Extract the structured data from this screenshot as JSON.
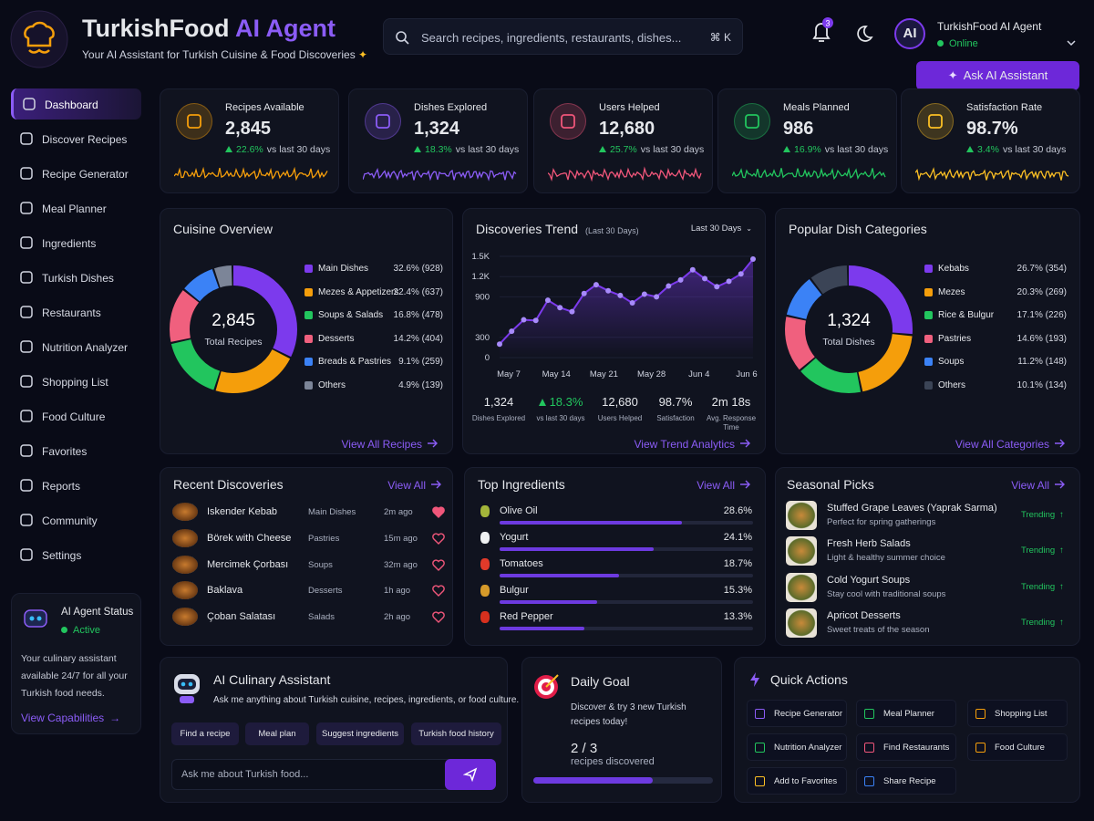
{
  "header": {
    "title_main": "TurkishFood",
    "title_accent": "AI Agent",
    "subtitle": "Your AI Assistant for Turkish Cuisine & Food Discoveries",
    "search_placeholder": "Search recipes, ingredients, restaurants, dishes...",
    "shortcut": "⌘ K",
    "notifications": 3,
    "avatar": "AI",
    "profile_name": "TurkishFood AI Agent",
    "status": "Online",
    "cta": "Ask AI Assistant"
  },
  "sidebar": {
    "active_index": 0,
    "nav": [
      "Dashboard",
      "Discover Recipes",
      "Recipe Generator",
      "Meal Planner",
      "Ingredients",
      "Turkish Dishes",
      "Restaurants",
      "Nutrition Analyzer",
      "Shopping List",
      "Food Culture",
      "Favorites",
      "Reports",
      "Community",
      "Settings"
    ],
    "status_card": {
      "title": "AI Agent Status",
      "state": "Active",
      "text": "Your culinary assistant available 24/7 for all your Turkish food needs.",
      "link": "View Capabilities"
    }
  },
  "stats": [
    {
      "label": "Recipes Available",
      "value": "2,845",
      "change": "22.6%",
      "period": "vs last 30 days",
      "color": "#f59e0b"
    },
    {
      "label": "Dishes Explored",
      "value": "1,324",
      "change": "18.3%",
      "period": "vs last 30 days",
      "color": "#8b5cf6"
    },
    {
      "label": "Users Helped",
      "value": "12,680",
      "change": "25.7%",
      "period": "vs last 30 days",
      "color": "#f0567a"
    },
    {
      "label": "Meals Planned",
      "value": "986",
      "change": "16.9%",
      "period": "vs last 30 days",
      "color": "#22c55e"
    },
    {
      "label": "Satisfaction Rate",
      "value": "98.7%",
      "change": "3.4%",
      "period": "vs last 30 days",
      "color": "#fbbf24"
    }
  ],
  "cuisine_overview": {
    "title": "Cuisine Overview",
    "center_value": "2,845",
    "center_label": "Total Recipes",
    "categories": [
      "Main Dishes",
      "Mezes & Appetizers",
      "Soups & Salads",
      "Desserts",
      "Breads & Pastries",
      "Others"
    ],
    "values": [
      32.6,
      22.4,
      16.8,
      14.2,
      9.1,
      4.9
    ],
    "value_labels": [
      "32.6% (928)",
      "22.4% (637)",
      "16.8% (478)",
      "14.2% (404)",
      "9.1% (259)",
      "4.9% (139)"
    ],
    "colors": [
      "#7c3aed",
      "#f59e0b",
      "#22c55e",
      "#f0607e",
      "#3b82f6",
      "#7c8598"
    ],
    "link": "View All Recipes"
  },
  "discoveries_trend": {
    "title": "Discoveries Trend",
    "subtitle": "(Last 30 Days)",
    "range": "Last 30 Days",
    "xticks": [
      "May 7",
      "May 14",
      "May 21",
      "May 28",
      "Jun 4",
      "Jun 6"
    ],
    "values": [
      200,
      390,
      560,
      550,
      850,
      740,
      680,
      950,
      1080,
      990,
      920,
      810,
      940,
      900,
      1060,
      1150,
      1300,
      1170,
      1050,
      1130,
      1240,
      1460
    ],
    "ylim": [
      0,
      1500
    ],
    "yticks": [
      {
        "value": 1500,
        "label": "1.5K"
      },
      {
        "value": 1200,
        "label": "1.2K"
      },
      900,
      300,
      0
    ],
    "color": "#a78bfa",
    "summary": [
      {
        "value": "1,324",
        "label": "Dishes Explored"
      },
      {
        "value": "18.3%",
        "label": "vs last 30 days",
        "trend": "up"
      },
      {
        "value": "12,680",
        "label": "Users Helped"
      },
      {
        "value": "98.7%",
        "label": "Satisfaction"
      },
      {
        "value": "2m 18s",
        "label": "Avg. Response Time"
      }
    ],
    "link": "View Trend Analytics"
  },
  "popular_categories": {
    "title": "Popular Dish Categories",
    "center_value": "1,324",
    "center_label": "Total Dishes",
    "categories": [
      "Kebabs",
      "Mezes",
      "Rice & Bulgur",
      "Pastries",
      "Soups",
      "Others"
    ],
    "values": [
      26.7,
      20.3,
      17.1,
      14.6,
      11.2,
      10.1
    ],
    "value_labels": [
      "26.7% (354)",
      "20.3% (269)",
      "17.1% (226)",
      "14.6% (193)",
      "11.2% (148)",
      "10.1% (134)"
    ],
    "colors": [
      "#7c3aed",
      "#f59e0b",
      "#22c55e",
      "#f0607e",
      "#3b82f6",
      "#3b4456"
    ],
    "link": "View All Categories"
  },
  "recent_discoveries": {
    "title": "Recent Discoveries",
    "link": "View All",
    "rows": [
      {
        "name": "Iskender Kebab",
        "category": "Main Dishes",
        "time": "2m ago",
        "favorite": true
      },
      {
        "name": "Börek with Cheese",
        "category": "Pastries",
        "time": "15m ago",
        "favorite": false
      },
      {
        "name": "Mercimek Çorbası",
        "category": "Soups",
        "time": "32m ago",
        "favorite": false
      },
      {
        "name": "Baklava",
        "category": "Desserts",
        "time": "1h ago",
        "favorite": false
      },
      {
        "name": "Çoban Salatası",
        "category": "Salads",
        "time": "2h ago",
        "favorite": false
      }
    ]
  },
  "top_ingredients": {
    "title": "Top Ingredients",
    "link": "View All",
    "names": [
      "Olive Oil",
      "Yogurt",
      "Tomatoes",
      "Bulgur",
      "Red Pepper"
    ],
    "values": [
      28.6,
      24.1,
      18.7,
      15.3,
      13.3
    ],
    "value_labels": [
      "28.6%",
      "24.1%",
      "18.7%",
      "15.3%",
      "13.3%"
    ],
    "color": "#6d3ae0"
  },
  "seasonal_picks": {
    "title": "Seasonal Picks",
    "link": "View All",
    "items": [
      {
        "name": "Stuffed Grape Leaves (Yaprak Sarma)",
        "description": "Perfect for spring gatherings",
        "badge": "Trending"
      },
      {
        "name": "Fresh Herb Salads",
        "description": "Light & healthy summer choice",
        "badge": "Trending"
      },
      {
        "name": "Cold Yogurt Soups",
        "description": "Stay cool with traditional soups",
        "badge": "Trending"
      },
      {
        "name": "Apricot Desserts",
        "description": "Sweet treats of the season",
        "badge": "Trending"
      }
    ]
  },
  "assistant": {
    "title": "AI Culinary Assistant",
    "text": "Ask me anything about Turkish cuisine, recipes, ingredients, or food culture.",
    "chips": [
      "Find a recipe",
      "Meal plan",
      "Suggest ingredients",
      "Turkish food history"
    ],
    "input_placeholder": "Ask me about Turkish food..."
  },
  "daily_goal": {
    "title": "Daily Goal",
    "text": "Discover & try 3 new Turkish recipes today!",
    "progress": {
      "value": 2,
      "target": 3,
      "label": "2 / 3"
    },
    "caption": "recipes discovered"
  },
  "quick_actions": {
    "title": "Quick Actions",
    "items": [
      {
        "label": "Recipe Generator",
        "color": "#8b5cf6"
      },
      {
        "label": "Meal Planner",
        "color": "#22c55e"
      },
      {
        "label": "Shopping List",
        "color": "#f59e0b"
      },
      {
        "label": "Nutrition Analyzer",
        "color": "#22c55e"
      },
      {
        "label": "Find Restaurants",
        "color": "#f0567a"
      },
      {
        "label": "Food Culture",
        "color": "#f59e0b"
      },
      {
        "label": "Add to Favorites",
        "color": "#fbbf24"
      },
      {
        "label": "Share Recipe",
        "color": "#3b82f6"
      }
    ]
  }
}
